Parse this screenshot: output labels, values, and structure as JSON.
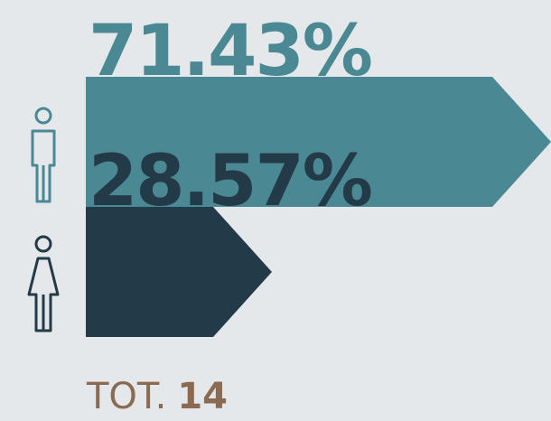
{
  "chart_data": {
    "type": "bar",
    "orientation": "horizontal",
    "categories": [
      null,
      null
    ],
    "values": [
      71.43,
      28.57
    ],
    "value_labels": [
      "71.43%",
      "28.57%"
    ],
    "colors": [
      "#4a8893",
      "#233a48"
    ],
    "total_label": "TOT.",
    "total": 14
  }
}
